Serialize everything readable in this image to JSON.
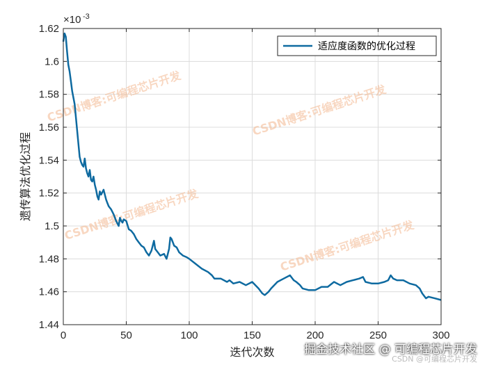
{
  "chart_data": {
    "type": "line",
    "xlabel": "迭代次数",
    "ylabel": "遗传算法优化过程",
    "xlim": [
      0,
      300
    ],
    "ylim": [
      1.44,
      1.62
    ],
    "y_exponent_label": "×10",
    "y_exponent_power": "-3",
    "xticks": [
      0,
      50,
      100,
      150,
      200,
      250,
      300
    ],
    "yticks": [
      1.44,
      1.46,
      1.48,
      1.5,
      1.52,
      1.54,
      1.56,
      1.58,
      1.6,
      1.62
    ],
    "ytick_labels": [
      "1.44",
      "1.46",
      "1.48",
      "1.5",
      "1.52",
      "1.54",
      "1.56",
      "1.58",
      "1.6",
      "1.62"
    ],
    "grid": true,
    "legend_position": "top-right",
    "series": [
      {
        "name": "适应度函数的优化过程",
        "color": "#0e6aa0",
        "x": [
          0,
          1,
          2,
          3,
          4,
          5,
          6,
          7,
          8,
          9,
          10,
          11,
          12,
          13,
          14,
          15,
          16,
          17,
          18,
          19,
          20,
          21,
          22,
          23,
          24,
          25,
          26,
          27,
          28,
          29,
          30,
          32,
          33,
          34,
          35,
          36,
          38,
          40,
          42,
          44,
          45,
          46,
          47,
          48,
          50,
          52,
          54,
          56,
          58,
          60,
          62,
          64,
          66,
          68,
          70,
          72,
          73,
          75,
          77,
          80,
          82,
          84,
          85,
          86,
          88,
          90,
          92,
          95,
          98,
          100,
          105,
          110,
          115,
          118,
          120,
          125,
          130,
          132,
          135,
          140,
          145,
          150,
          155,
          158,
          160,
          163,
          165,
          170,
          175,
          180,
          183,
          185,
          188,
          190,
          195,
          200,
          205,
          210,
          215,
          220,
          225,
          230,
          235,
          238,
          240,
          245,
          250,
          255,
          258,
          260,
          262,
          265,
          270,
          275,
          280,
          283,
          285,
          288,
          290,
          295,
          300
        ],
        "values": [
          1.612,
          1.617,
          1.615,
          1.606,
          1.598,
          1.594,
          1.588,
          1.582,
          1.578,
          1.574,
          1.566,
          1.558,
          1.55,
          1.542,
          1.539,
          1.537,
          1.536,
          1.541,
          1.535,
          1.532,
          1.53,
          1.534,
          1.528,
          1.527,
          1.53,
          1.525,
          1.522,
          1.518,
          1.516,
          1.521,
          1.519,
          1.522,
          1.519,
          1.516,
          1.514,
          1.512,
          1.51,
          1.507,
          1.503,
          1.5,
          1.505,
          1.503,
          1.502,
          1.504,
          1.503,
          1.498,
          1.497,
          1.495,
          1.492,
          1.49,
          1.488,
          1.487,
          1.484,
          1.482,
          1.485,
          1.491,
          1.486,
          1.484,
          1.482,
          1.483,
          1.48,
          1.486,
          1.493,
          1.492,
          1.488,
          1.487,
          1.484,
          1.482,
          1.481,
          1.48,
          1.477,
          1.474,
          1.472,
          1.47,
          1.468,
          1.468,
          1.466,
          1.467,
          1.465,
          1.466,
          1.464,
          1.466,
          1.462,
          1.459,
          1.458,
          1.46,
          1.462,
          1.466,
          1.468,
          1.47,
          1.467,
          1.466,
          1.464,
          1.462,
          1.461,
          1.461,
          1.463,
          1.463,
          1.466,
          1.464,
          1.466,
          1.467,
          1.468,
          1.469,
          1.466,
          1.465,
          1.465,
          1.466,
          1.467,
          1.47,
          1.468,
          1.467,
          1.467,
          1.465,
          1.464,
          1.462,
          1.459,
          1.456,
          1.457,
          1.456,
          1.455
        ]
      }
    ]
  },
  "watermarks": [
    "CSDN博客:可编程芯片开发",
    "CSDN博客:可编程芯片开发",
    "CSDN博客:可编程芯片开发",
    "CSDN博客:可编程芯片开发"
  ],
  "footer": {
    "main": "掘金技术社区 @ 可编程芯片开发",
    "sub": "CSDN @可编程芯片开发"
  }
}
